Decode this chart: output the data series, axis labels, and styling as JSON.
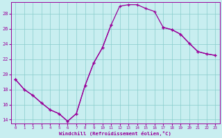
{
  "xlabel": "Windchill (Refroidissement éolien,°C)",
  "hours": [
    0,
    1,
    2,
    3,
    4,
    5,
    6,
    7,
    8,
    9,
    10,
    11,
    12,
    13,
    14,
    15,
    16,
    17,
    18,
    19,
    20,
    21,
    22,
    23
  ],
  "curve1": [
    19.3,
    18.0,
    17.2,
    16.2,
    15.3,
    14.8,
    13.8,
    14.8,
    18.5,
    21.5,
    23.5,
    26.5,
    29.0,
    29.2,
    29.2,
    28.7,
    28.3,
    26.2,
    null,
    null,
    null,
    null,
    null,
    null
  ],
  "curve2": [
    19.3,
    18.0,
    17.2,
    16.2,
    15.3,
    14.8,
    13.8,
    14.8,
    18.5,
    21.5,
    23.5,
    26.5,
    null,
    null,
    null,
    null,
    null,
    26.2,
    25.9,
    25.3,
    24.1,
    23.0,
    22.7,
    22.5
  ],
  "curve3": [
    19.3,
    null,
    null,
    null,
    null,
    null,
    null,
    null,
    null,
    null,
    null,
    null,
    null,
    null,
    null,
    null,
    null,
    26.2,
    25.9,
    25.3,
    24.1,
    23.0,
    22.7,
    22.5
  ],
  "bg_color": "#c8eef0",
  "line_color": "#990099",
  "grid_color": "#88cccc",
  "ylim": [
    13.5,
    29.5
  ],
  "xlim": [
    -0.5,
    23.5
  ],
  "yticks": [
    14,
    16,
    18,
    20,
    22,
    24,
    26,
    28
  ],
  "xticks": [
    0,
    1,
    2,
    3,
    4,
    5,
    6,
    7,
    8,
    9,
    10,
    11,
    12,
    13,
    14,
    15,
    16,
    17,
    18,
    19,
    20,
    21,
    22,
    23
  ]
}
